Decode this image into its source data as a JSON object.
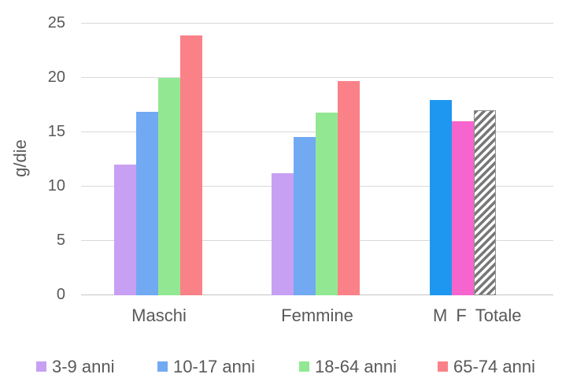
{
  "chart_data": {
    "type": "bar",
    "title": "",
    "xlabel": "",
    "ylabel": "g/die",
    "ylim": [
      0,
      25
    ],
    "yticks": [
      0,
      5,
      10,
      15,
      20,
      25
    ],
    "grid": true,
    "legend_position": "bottom",
    "axis_text_color": "#595959",
    "gridline_color": "#d9d9d9",
    "categories": [
      "Maschi",
      "Femmine"
    ],
    "series": [
      {
        "name": "3-9 anni",
        "color": "#c7a0f3",
        "values": [
          12.0,
          11.2
        ]
      },
      {
        "name": "10-17 anni",
        "color": "#71a9f3",
        "values": [
          16.9,
          14.6
        ]
      },
      {
        "name": "18-64 anni",
        "color": "#92e892",
        "values": [
          20.0,
          16.8
        ]
      },
      {
        "name": "65-74 anni",
        "color": "#fa8188",
        "values": [
          23.9,
          19.7
        ]
      }
    ],
    "totals_group": {
      "label_parts": [
        "M",
        "F",
        "Totale"
      ],
      "bars": [
        {
          "name": "M",
          "color": "#1e97f0",
          "value": 18.0
        },
        {
          "name": "F",
          "color": "#f665ce",
          "value": 16.0
        },
        {
          "name": "Totale",
          "fill": "diagonal-hatch",
          "hatch_color": "#787878",
          "value": 17.0
        }
      ]
    },
    "legend": [
      "3-9 anni",
      "10-17 anni",
      "18-64 anni",
      "65-74 anni"
    ]
  }
}
